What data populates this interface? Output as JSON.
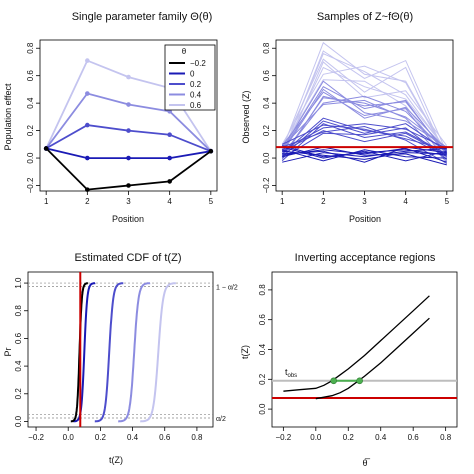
{
  "colors": {
    "theta_-0.2": "#000000",
    "theta_0": "#1a1ab5",
    "theta_0.2": "#4d4dcc",
    "theta_0.4": "#8c8ce0",
    "theta_0.6": "#c4c4ef",
    "observed_line": "#cc0000",
    "threshold_line": "#bdbdbd",
    "crossing_points": "#4caf50"
  },
  "chart_data": [
    {
      "type": "line",
      "title": "Single parameter family Θ(θ)",
      "xlabel": "Position",
      "ylabel": "Population effect",
      "xlim": [
        1,
        5
      ],
      "ylim": [
        -0.2,
        0.8
      ],
      "xticks": [
        "1",
        "2",
        "3",
        "4",
        "5"
      ],
      "yticks": [
        "−0.2",
        "0.0",
        "0.2",
        "0.4",
        "0.6",
        "0.8"
      ],
      "legend": {
        "title": "θ",
        "placement": "top-right",
        "entries": [
          "−0.2",
          "0",
          "0.2",
          "0.4",
          "0.6"
        ]
      },
      "x": [
        1,
        2,
        3,
        4,
        5
      ],
      "series": [
        {
          "name": "−0.2",
          "values": [
            0.07,
            -0.23,
            -0.2,
            -0.17,
            0.05
          ]
        },
        {
          "name": "0",
          "values": [
            0.07,
            0.0,
            0.0,
            0.0,
            0.05
          ]
        },
        {
          "name": "0.2",
          "values": [
            0.07,
            0.24,
            0.2,
            0.17,
            0.05
          ]
        },
        {
          "name": "0.4",
          "values": [
            0.07,
            0.47,
            0.39,
            0.34,
            0.05
          ]
        },
        {
          "name": "0.6",
          "values": [
            0.07,
            0.71,
            0.59,
            0.51,
            0.05
          ]
        }
      ]
    },
    {
      "type": "line",
      "title": "Samples of Z~fΘ(θ)",
      "xlabel": "Position",
      "ylabel": "Observed (Z)",
      "xlim": [
        1,
        5
      ],
      "ylim": [
        -0.2,
        0.8
      ],
      "xticks": [
        "1",
        "2",
        "3",
        "4",
        "5"
      ],
      "yticks": [
        "−0.2",
        "0.0",
        "0.2",
        "0.4",
        "0.6",
        "0.8"
      ],
      "x": [
        1,
        2,
        3,
        4,
        5
      ],
      "samples": [
        {
          "theta": 0.6,
          "values": [
            0.06,
            0.84,
            0.61,
            0.56,
            0.03
          ]
        },
        {
          "theta": 0.6,
          "values": [
            0.02,
            0.78,
            0.58,
            0.71,
            0.04
          ]
        },
        {
          "theta": 0.6,
          "values": [
            0.08,
            0.72,
            0.48,
            0.66,
            0.0
          ]
        },
        {
          "theta": 0.6,
          "values": [
            0.04,
            0.66,
            0.52,
            0.43,
            0.06
          ]
        },
        {
          "theta": 0.6,
          "values": [
            0.1,
            0.61,
            0.67,
            0.55,
            0.02
          ]
        },
        {
          "theta": 0.6,
          "values": [
            0.0,
            0.7,
            0.44,
            0.49,
            0.09
          ]
        },
        {
          "theta": 0.6,
          "values": [
            0.07,
            0.57,
            0.56,
            0.38,
            -0.01
          ]
        },
        {
          "theta": 0.6,
          "values": [
            0.03,
            0.76,
            0.63,
            0.46,
            0.05
          ]
        },
        {
          "theta": 0.4,
          "values": [
            0.05,
            0.52,
            0.36,
            0.42,
            0.02
          ]
        },
        {
          "theta": 0.4,
          "values": [
            0.01,
            0.44,
            0.4,
            0.3,
            0.07
          ]
        },
        {
          "theta": 0.4,
          "values": [
            0.09,
            0.48,
            0.31,
            0.36,
            -0.02
          ]
        },
        {
          "theta": 0.4,
          "values": [
            0.02,
            0.4,
            0.45,
            0.34,
            0.04
          ]
        },
        {
          "theta": 0.4,
          "values": [
            0.06,
            0.56,
            0.33,
            0.27,
            0.08
          ]
        },
        {
          "theta": 0.4,
          "values": [
            -0.01,
            0.45,
            0.38,
            0.41,
            0.03
          ]
        },
        {
          "theta": 0.4,
          "values": [
            0.08,
            0.39,
            0.42,
            0.29,
            -0.03
          ]
        },
        {
          "theta": 0.4,
          "values": [
            0.04,
            0.5,
            0.29,
            0.37,
            0.06
          ]
        },
        {
          "theta": 0.2,
          "values": [
            0.03,
            0.29,
            0.2,
            0.16,
            0.01
          ]
        },
        {
          "theta": 0.2,
          "values": [
            0.06,
            0.22,
            0.25,
            0.21,
            0.07
          ]
        },
        {
          "theta": 0.2,
          "values": [
            -0.02,
            0.25,
            0.15,
            0.19,
            0.03
          ]
        },
        {
          "theta": 0.2,
          "values": [
            0.08,
            0.19,
            0.23,
            0.13,
            -0.04
          ]
        },
        {
          "theta": 0.2,
          "values": [
            0.01,
            0.27,
            0.18,
            0.25,
            0.05
          ]
        },
        {
          "theta": 0.2,
          "values": [
            0.05,
            0.2,
            0.12,
            0.18,
            0.02
          ]
        },
        {
          "theta": 0.2,
          "values": [
            0.1,
            0.24,
            0.21,
            0.14,
            0.06
          ]
        },
        {
          "theta": 0.2,
          "values": [
            0.0,
            0.18,
            0.17,
            0.22,
            -0.01
          ]
        },
        {
          "theta": 0.0,
          "values": [
            0.05,
            0.02,
            -0.01,
            0.04,
            0.03
          ]
        },
        {
          "theta": 0.0,
          "values": [
            0.02,
            0.06,
            0.03,
            0.07,
            -0.03
          ]
        },
        {
          "theta": 0.0,
          "values": [
            0.08,
            0.0,
            0.05,
            -0.02,
            0.05
          ]
        },
        {
          "theta": 0.0,
          "values": [
            -0.03,
            0.04,
            0.01,
            0.05,
            0.07
          ]
        },
        {
          "theta": 0.0,
          "values": [
            0.06,
            -0.02,
            0.06,
            0.01,
            0.0
          ]
        },
        {
          "theta": 0.0,
          "values": [
            0.03,
            0.05,
            -0.03,
            0.08,
            0.04
          ]
        },
        {
          "theta": 0.0,
          "values": [
            0.01,
            0.08,
            0.02,
            0.03,
            -0.05
          ]
        },
        {
          "theta": 0.0,
          "values": [
            0.09,
            0.01,
            0.04,
            0.06,
            0.02
          ]
        }
      ],
      "observed": {
        "y": 0.08,
        "label": ""
      }
    },
    {
      "type": "line",
      "title": "Estimated CDF of t(Z)",
      "xlabel": "t(Z)",
      "ylabel": "Pr",
      "xlim": [
        -0.25,
        0.9
      ],
      "ylim": [
        0,
        1.05
      ],
      "xticks": [
        "−0.2",
        "0.0",
        "0.2",
        "0.4",
        "0.6",
        "0.8"
      ],
      "yticks": [
        "0.0",
        "0.2",
        "0.4",
        "0.6",
        "0.8",
        "1.0"
      ],
      "series": [
        {
          "name": "−0.2",
          "center": 0.07,
          "spread": 0.012
        },
        {
          "name": "0",
          "center": 0.1,
          "spread": 0.015
        },
        {
          "name": "0.2",
          "center": 0.255,
          "spread": 0.02
        },
        {
          "name": "0.4",
          "center": 0.41,
          "spread": 0.022
        },
        {
          "name": "0.6",
          "center": 0.56,
          "spread": 0.025
        }
      ],
      "observed_x": 0.075,
      "reference_lines": [
        {
          "y": 1.0,
          "label": ""
        },
        {
          "y": 0.975,
          "label": "1 − α/2"
        },
        {
          "y": 0.05,
          "label": ""
        },
        {
          "y": 0.025,
          "label": "α/2"
        }
      ]
    },
    {
      "type": "line",
      "title": "Inverting acceptance regions",
      "xlabel": "θ̅",
      "ylabel": "t(Z)",
      "xlim": [
        -0.25,
        0.85
      ],
      "ylim": [
        -0.1,
        0.9
      ],
      "xticks": [
        "−0.2",
        "0.0",
        "0.2",
        "0.4",
        "0.6",
        "0.8"
      ],
      "yticks": [
        "0.0",
        "0.2",
        "0.4",
        "0.6",
        "0.8"
      ],
      "series": [
        {
          "name": "",
          "x": [
            -0.2,
            -0.1,
            0.0,
            0.05,
            0.1,
            0.15,
            0.2,
            0.3,
            0.4,
            0.5,
            0.6,
            0.7
          ],
          "values": [
            0.12,
            0.13,
            0.14,
            0.16,
            0.19,
            0.23,
            0.27,
            0.36,
            0.46,
            0.56,
            0.66,
            0.76
          ]
        },
        {
          "name": "",
          "x": [
            0.0,
            0.05,
            0.1,
            0.15,
            0.2,
            0.25,
            0.3,
            0.4,
            0.5,
            0.6,
            0.7
          ],
          "values": [
            0.07,
            0.08,
            0.09,
            0.11,
            0.14,
            0.18,
            0.22,
            0.31,
            0.41,
            0.51,
            0.61
          ]
        }
      ],
      "t_obs": {
        "y": 0.19,
        "label": "t",
        "subscript": "obs"
      },
      "lower_line": {
        "y": 0.075
      },
      "interval": {
        "x": [
          0.11,
          0.27
        ],
        "y": 0.19
      }
    }
  ]
}
